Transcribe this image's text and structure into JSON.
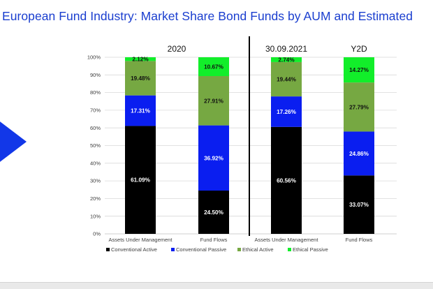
{
  "title": "European Fund Industry: Market Share Bond Funds by AUM and Estimated",
  "colors": {
    "conventional_active": "#000000",
    "conventional_passive": "#0a1ef0",
    "ethical_active": "#76a842",
    "ethical_passive": "#12ee2a",
    "title": "#1a3ecf",
    "arrow": "#1237e8"
  },
  "chart_data": {
    "type": "bar",
    "stacked": true,
    "percent": true,
    "ylim": [
      0,
      100
    ],
    "yticks": [
      "0%",
      "10%",
      "20%",
      "30%",
      "40%",
      "50%",
      "60%",
      "70%",
      "80%",
      "90%",
      "100%"
    ],
    "group_headers": [
      "2020",
      "30.09.2021",
      "Y2D"
    ],
    "categories": [
      "Assets Under Management",
      "Fund Flows",
      "Assets Under Management",
      "Fund Flows"
    ],
    "series": [
      {
        "name": "Conventional Active",
        "values": [
          61.09,
          24.5,
          60.56,
          33.07
        ],
        "labels": [
          "61.09%",
          "24.50%",
          "60.56%",
          "33.07%"
        ]
      },
      {
        "name": "Conventional Passive",
        "values": [
          17.31,
          36.92,
          17.26,
          24.86
        ],
        "labels": [
          "17.31%",
          "36.92%",
          "17.26%",
          "24.86%"
        ]
      },
      {
        "name": "Ethical Active",
        "values": [
          19.48,
          27.91,
          19.44,
          27.79
        ],
        "labels": [
          "19.48%",
          "27.91%",
          "19.44%",
          "27.79%"
        ]
      },
      {
        "name": "Ethical Passive",
        "values": [
          2.12,
          10.67,
          2.74,
          14.27
        ],
        "labels": [
          "2.12%",
          "10.67%",
          "2.74%",
          "14.27%"
        ]
      }
    ],
    "legend_position": "bottom",
    "grid": true
  }
}
